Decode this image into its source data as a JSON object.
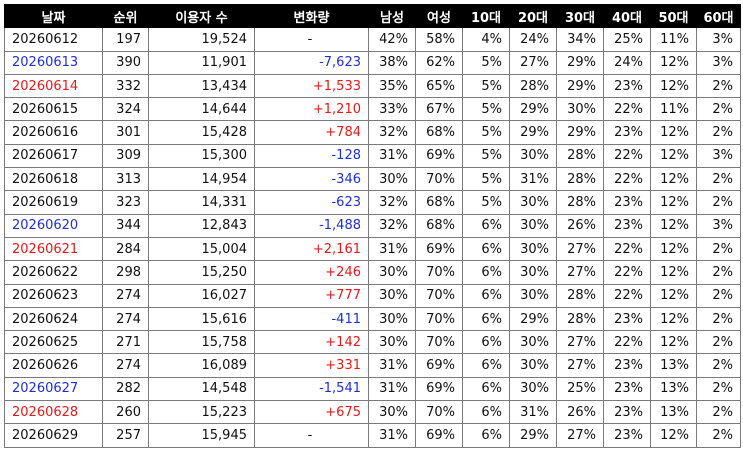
{
  "colors": {
    "header_bg": "#000000",
    "header_text": "#ffffff",
    "increase": "#e01b1b",
    "decrease": "#1f2fd6",
    "saturday_date": "#1f2fd6",
    "sunday_date": "#e01b1b",
    "grid": "#7a7a7a"
  },
  "table": {
    "headers": [
      "날짜",
      "순위",
      "이용자 수",
      "변화량",
      "남성",
      "여성",
      "10대",
      "20대",
      "30대",
      "40대",
      "50대",
      "60대"
    ],
    "rows": [
      {
        "date": "20260612",
        "rank": "197",
        "users": "19,524",
        "change": "-",
        "male": "42%",
        "female": "58%",
        "age10": "4%",
        "age20": "24%",
        "age30": "34%",
        "age40": "25%",
        "age50": "11%",
        "age60": "3%",
        "date_color": "default",
        "change_sign": "none"
      },
      {
        "date": "20260613",
        "rank": "390",
        "users": "11,901",
        "change": "-7,623",
        "male": "38%",
        "female": "62%",
        "age10": "5%",
        "age20": "27%",
        "age30": "29%",
        "age40": "24%",
        "age50": "12%",
        "age60": "3%",
        "date_color": "blue",
        "change_sign": "neg"
      },
      {
        "date": "20260614",
        "rank": "332",
        "users": "13,434",
        "change": "+1,533",
        "male": "35%",
        "female": "65%",
        "age10": "5%",
        "age20": "28%",
        "age30": "29%",
        "age40": "23%",
        "age50": "12%",
        "age60": "2%",
        "date_color": "red",
        "change_sign": "pos"
      },
      {
        "date": "20260615",
        "rank": "324",
        "users": "14,644",
        "change": "+1,210",
        "male": "33%",
        "female": "67%",
        "age10": "5%",
        "age20": "29%",
        "age30": "30%",
        "age40": "22%",
        "age50": "11%",
        "age60": "2%",
        "date_color": "default",
        "change_sign": "pos"
      },
      {
        "date": "20260616",
        "rank": "301",
        "users": "15,428",
        "change": "+784",
        "male": "32%",
        "female": "68%",
        "age10": "5%",
        "age20": "29%",
        "age30": "29%",
        "age40": "23%",
        "age50": "12%",
        "age60": "2%",
        "date_color": "default",
        "change_sign": "pos"
      },
      {
        "date": "20260617",
        "rank": "309",
        "users": "15,300",
        "change": "-128",
        "male": "31%",
        "female": "69%",
        "age10": "5%",
        "age20": "30%",
        "age30": "28%",
        "age40": "22%",
        "age50": "12%",
        "age60": "3%",
        "date_color": "default",
        "change_sign": "neg"
      },
      {
        "date": "20260618",
        "rank": "313",
        "users": "14,954",
        "change": "-346",
        "male": "30%",
        "female": "70%",
        "age10": "5%",
        "age20": "31%",
        "age30": "28%",
        "age40": "22%",
        "age50": "12%",
        "age60": "2%",
        "date_color": "default",
        "change_sign": "neg"
      },
      {
        "date": "20260619",
        "rank": "323",
        "users": "14,331",
        "change": "-623",
        "male": "32%",
        "female": "68%",
        "age10": "5%",
        "age20": "30%",
        "age30": "28%",
        "age40": "23%",
        "age50": "12%",
        "age60": "2%",
        "date_color": "default",
        "change_sign": "neg"
      },
      {
        "date": "20260620",
        "rank": "344",
        "users": "12,843",
        "change": "-1,488",
        "male": "32%",
        "female": "68%",
        "age10": "6%",
        "age20": "30%",
        "age30": "26%",
        "age40": "23%",
        "age50": "12%",
        "age60": "3%",
        "date_color": "blue",
        "change_sign": "neg"
      },
      {
        "date": "20260621",
        "rank": "284",
        "users": "15,004",
        "change": "+2,161",
        "male": "31%",
        "female": "69%",
        "age10": "6%",
        "age20": "30%",
        "age30": "27%",
        "age40": "22%",
        "age50": "12%",
        "age60": "2%",
        "date_color": "red",
        "change_sign": "pos"
      },
      {
        "date": "20260622",
        "rank": "298",
        "users": "15,250",
        "change": "+246",
        "male": "30%",
        "female": "70%",
        "age10": "6%",
        "age20": "30%",
        "age30": "27%",
        "age40": "22%",
        "age50": "12%",
        "age60": "2%",
        "date_color": "default",
        "change_sign": "pos"
      },
      {
        "date": "20260623",
        "rank": "274",
        "users": "16,027",
        "change": "+777",
        "male": "30%",
        "female": "70%",
        "age10": "6%",
        "age20": "30%",
        "age30": "28%",
        "age40": "22%",
        "age50": "12%",
        "age60": "2%",
        "date_color": "default",
        "change_sign": "pos"
      },
      {
        "date": "20260624",
        "rank": "274",
        "users": "15,616",
        "change": "-411",
        "male": "30%",
        "female": "70%",
        "age10": "6%",
        "age20": "29%",
        "age30": "28%",
        "age40": "23%",
        "age50": "12%",
        "age60": "2%",
        "date_color": "default",
        "change_sign": "neg"
      },
      {
        "date": "20260625",
        "rank": "271",
        "users": "15,758",
        "change": "+142",
        "male": "30%",
        "female": "70%",
        "age10": "6%",
        "age20": "30%",
        "age30": "27%",
        "age40": "22%",
        "age50": "12%",
        "age60": "2%",
        "date_color": "default",
        "change_sign": "pos"
      },
      {
        "date": "20260626",
        "rank": "274",
        "users": "16,089",
        "change": "+331",
        "male": "31%",
        "female": "69%",
        "age10": "6%",
        "age20": "30%",
        "age30": "27%",
        "age40": "23%",
        "age50": "13%",
        "age60": "2%",
        "date_color": "default",
        "change_sign": "pos"
      },
      {
        "date": "20260627",
        "rank": "282",
        "users": "14,548",
        "change": "-1,541",
        "male": "31%",
        "female": "69%",
        "age10": "6%",
        "age20": "30%",
        "age30": "25%",
        "age40": "23%",
        "age50": "13%",
        "age60": "2%",
        "date_color": "blue",
        "change_sign": "neg"
      },
      {
        "date": "20260628",
        "rank": "260",
        "users": "15,223",
        "change": "+675",
        "male": "30%",
        "female": "70%",
        "age10": "6%",
        "age20": "31%",
        "age30": "26%",
        "age40": "23%",
        "age50": "13%",
        "age60": "2%",
        "date_color": "red",
        "change_sign": "pos"
      },
      {
        "date": "20260629",
        "rank": "257",
        "users": "15,945",
        "change": "-",
        "male": "31%",
        "female": "69%",
        "age10": "6%",
        "age20": "29%",
        "age30": "27%",
        "age40": "23%",
        "age50": "12%",
        "age60": "2%",
        "date_color": "default",
        "change_sign": "none"
      }
    ]
  }
}
